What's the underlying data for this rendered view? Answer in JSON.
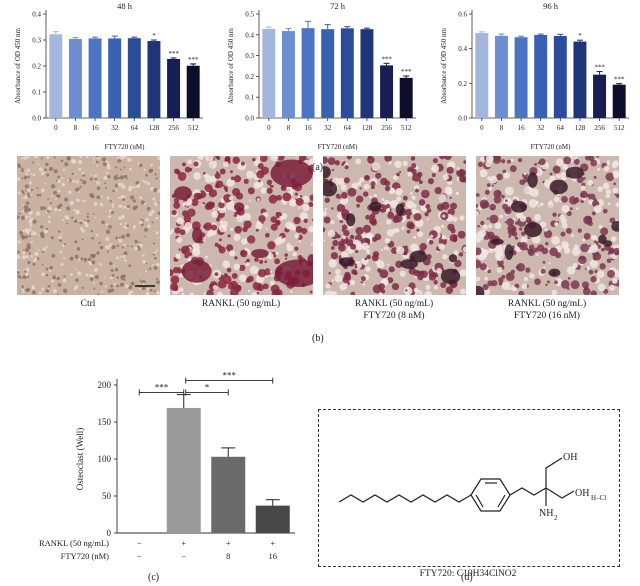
{
  "chart_data": [
    {
      "type": "bar",
      "title": "48 h",
      "xlabel": "FTY720 (nM)",
      "ylabel": "Absorbance of OD 450 nm",
      "categories": [
        "0",
        "8",
        "16",
        "32",
        "64",
        "128",
        "256",
        "512"
      ],
      "values": [
        0.322,
        0.304,
        0.306,
        0.306,
        0.307,
        0.296,
        0.227,
        0.201
      ],
      "errors": [
        0.01,
        0.005,
        0.005,
        0.009,
        0.004,
        0.004,
        0.004,
        0.007
      ],
      "annotations": [
        "",
        "",
        "",
        "",
        "",
        "*",
        "***",
        "***"
      ],
      "yticks": [
        "0.0",
        "0.1",
        "0.2",
        "0.3",
        "0.4"
      ],
      "ylim": [
        0,
        0.4
      ],
      "colors": [
        "#a2b6de",
        "#6e8fcf",
        "#4d74c2",
        "#3a60b2",
        "#2b4c98",
        "#1e3577",
        "#161e52",
        "#0d0e2b"
      ]
    },
    {
      "type": "bar",
      "title": "72 h",
      "xlabel": "FTY720 (nM)",
      "ylabel": "Absorbance of OD 450 nm",
      "categories": [
        "0",
        "8",
        "16",
        "32",
        "64",
        "128",
        "256",
        "512"
      ],
      "values": [
        0.428,
        0.418,
        0.432,
        0.427,
        0.431,
        0.427,
        0.253,
        0.193
      ],
      "errors": [
        0.009,
        0.012,
        0.033,
        0.022,
        0.008,
        0.005,
        0.01,
        0.009
      ],
      "annotations": [
        "",
        "",
        "",
        "",
        "",
        "",
        "***",
        "***"
      ],
      "yticks": [
        "0.0",
        "0.1",
        "0.2",
        "0.3",
        "0.4",
        "0.5"
      ],
      "ylim": [
        0,
        0.5
      ],
      "colors": [
        "#a2b6de",
        "#6e8fcf",
        "#4d74c2",
        "#3a60b2",
        "#2b4c98",
        "#1e3577",
        "#161e52",
        "#0d0e2b"
      ]
    },
    {
      "type": "bar",
      "title": "96 h",
      "xlabel": "FTY720 (nM)",
      "ylabel": "Absorbance of OD 450 nm",
      "categories": [
        "0",
        "8",
        "16",
        "32",
        "64",
        "128",
        "256",
        "512"
      ],
      "values": [
        0.49,
        0.474,
        0.466,
        0.479,
        0.473,
        0.441,
        0.25,
        0.192
      ],
      "errors": [
        0.007,
        0.01,
        0.006,
        0.005,
        0.01,
        0.008,
        0.018,
        0.006
      ],
      "annotations": [
        "",
        "",
        "",
        "",
        "",
        "*",
        "***",
        "***"
      ],
      "yticks": [
        "0.0",
        "0.2",
        "0.4",
        "0.6"
      ],
      "ylim": [
        0,
        0.6
      ],
      "colors": [
        "#a2b6de",
        "#6e8fcf",
        "#4d74c2",
        "#3a60b2",
        "#2b4c98",
        "#1e3577",
        "#161e52",
        "#0d0e2b"
      ]
    },
    {
      "type": "bar",
      "ylabel": "Osteoclast (Well)",
      "categories": [
        "1",
        "2",
        "3",
        "4"
      ],
      "values": [
        0,
        169,
        103,
        37
      ],
      "errors": [
        0,
        18,
        12,
        8
      ],
      "colors": [
        "#9a9a9a",
        "#9a9a9a",
        "#6a6a6a",
        "#474747"
      ],
      "yticks": [
        "0",
        "50",
        "100",
        "150",
        "200"
      ],
      "ylim": [
        0,
        200
      ],
      "rows": [
        {
          "label": "RANKL (50 ng/mL)",
          "values": [
            "−",
            "+",
            "+",
            "+"
          ]
        },
        {
          "label": "FTY720 (nM)",
          "values": [
            "−",
            "−",
            "8",
            "16"
          ]
        }
      ],
      "significance": [
        {
          "from": 0,
          "to": 1,
          "label": "***"
        },
        {
          "from": 1,
          "to": 2,
          "label": "*"
        },
        {
          "from": 1,
          "to": 3,
          "label": "***"
        }
      ]
    }
  ],
  "panels": {
    "a": "(a)",
    "b": "(b)",
    "c": "(c)",
    "d": "(d)"
  },
  "photos": [
    {
      "caption": [
        "Ctrl"
      ],
      "tint": "#b89a86"
    },
    {
      "caption": [
        "RANKL (50 ng/mL)"
      ],
      "tint": "#8a2540"
    },
    {
      "caption": [
        "RANKL (50 ng/mL)",
        "FTY720 (8 nM)"
      ],
      "tint": "#7e2a45"
    },
    {
      "caption": [
        "RANKL (50 ng/mL)",
        "FTY720 (16 nM)"
      ],
      "tint": "#7c3650"
    }
  ],
  "molecule": {
    "labels": {
      "oh": "OH",
      "oh_hcl": "OH",
      "hcl": "H–Cl",
      "nh2": "NH",
      "nh2_sub": "2"
    },
    "formula": "FTY720: C19H34ClNO2"
  }
}
